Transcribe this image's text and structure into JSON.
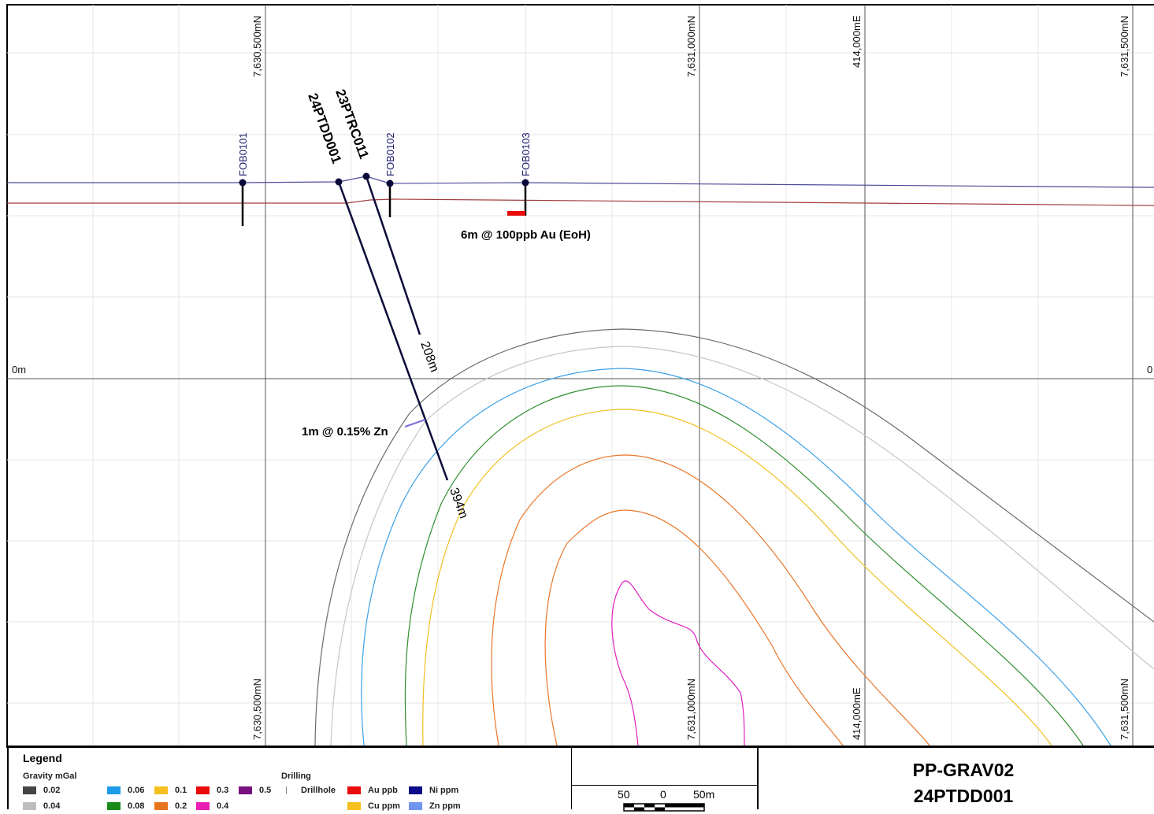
{
  "map": {
    "grid_labels_top": [
      "7,630,500mN",
      "7,631,000mN",
      "414,000mE",
      "7,631,500mN"
    ],
    "grid_labels_bottom": [
      "7,630,500mN",
      "7,631,000mN",
      "414,000mE",
      "7,631,500mN"
    ],
    "rl_label_left": "0m",
    "rl_label_right": "0",
    "holes": [
      "FOB0101",
      "FOB0102",
      "FOB0103"
    ],
    "drillholes": [
      {
        "name": "24PTDD001",
        "depth_label": "394m"
      },
      {
        "name": "23PTRC011",
        "depth_label": "208m"
      }
    ],
    "annotations": {
      "au_intercept": "6m @ 100ppb Au (EoH)",
      "zn_intercept": "1m @ 0.15% Zn"
    },
    "contour_colors": {
      "0.02": "#555555",
      "0.04": "#c4c4c4",
      "0.06": "#3aa0e8",
      "0.08": "#2f8f2f",
      "0.1": "#f0c020",
      "0.2": "#e8772a",
      "0.3": "#e00000",
      "0.4": "#e020c0",
      "0.5": "#7a1a8a"
    }
  },
  "legend": {
    "title": "Legend",
    "gravity_title": "Gravity mGal",
    "gravity_items": [
      {
        "label": "0.02",
        "color": "#444444"
      },
      {
        "label": "0.04",
        "color": "#bdbdbd"
      },
      {
        "label": "0.06",
        "color": "#1e9be8"
      },
      {
        "label": "0.08",
        "color": "#1a8a1a"
      },
      {
        "label": "0.1",
        "color": "#f5c01f"
      },
      {
        "label": "0.2",
        "color": "#e8741c"
      },
      {
        "label": "0.3",
        "color": "#e80c0c"
      },
      {
        "label": "0.4",
        "color": "#e81eb5"
      },
      {
        "label": "0.5",
        "color": "#7b1180"
      }
    ],
    "drilling_title": "Drilling",
    "drilling_items": [
      {
        "label": "Drillhole",
        "color": "#888888"
      },
      {
        "label": "Au ppb",
        "color": "#e80c0c"
      },
      {
        "label": "Ni ppm",
        "color": "#0a0a8a"
      },
      {
        "label": "Cu ppm",
        "color": "#f5c01f"
      },
      {
        "label": "Zn ppm",
        "color": "#6f95f0"
      }
    ]
  },
  "scale": {
    "left": "50",
    "mid": "0",
    "right": "50m"
  },
  "title": {
    "project": "PP-GRAV02",
    "hole": "24PTDD001"
  }
}
